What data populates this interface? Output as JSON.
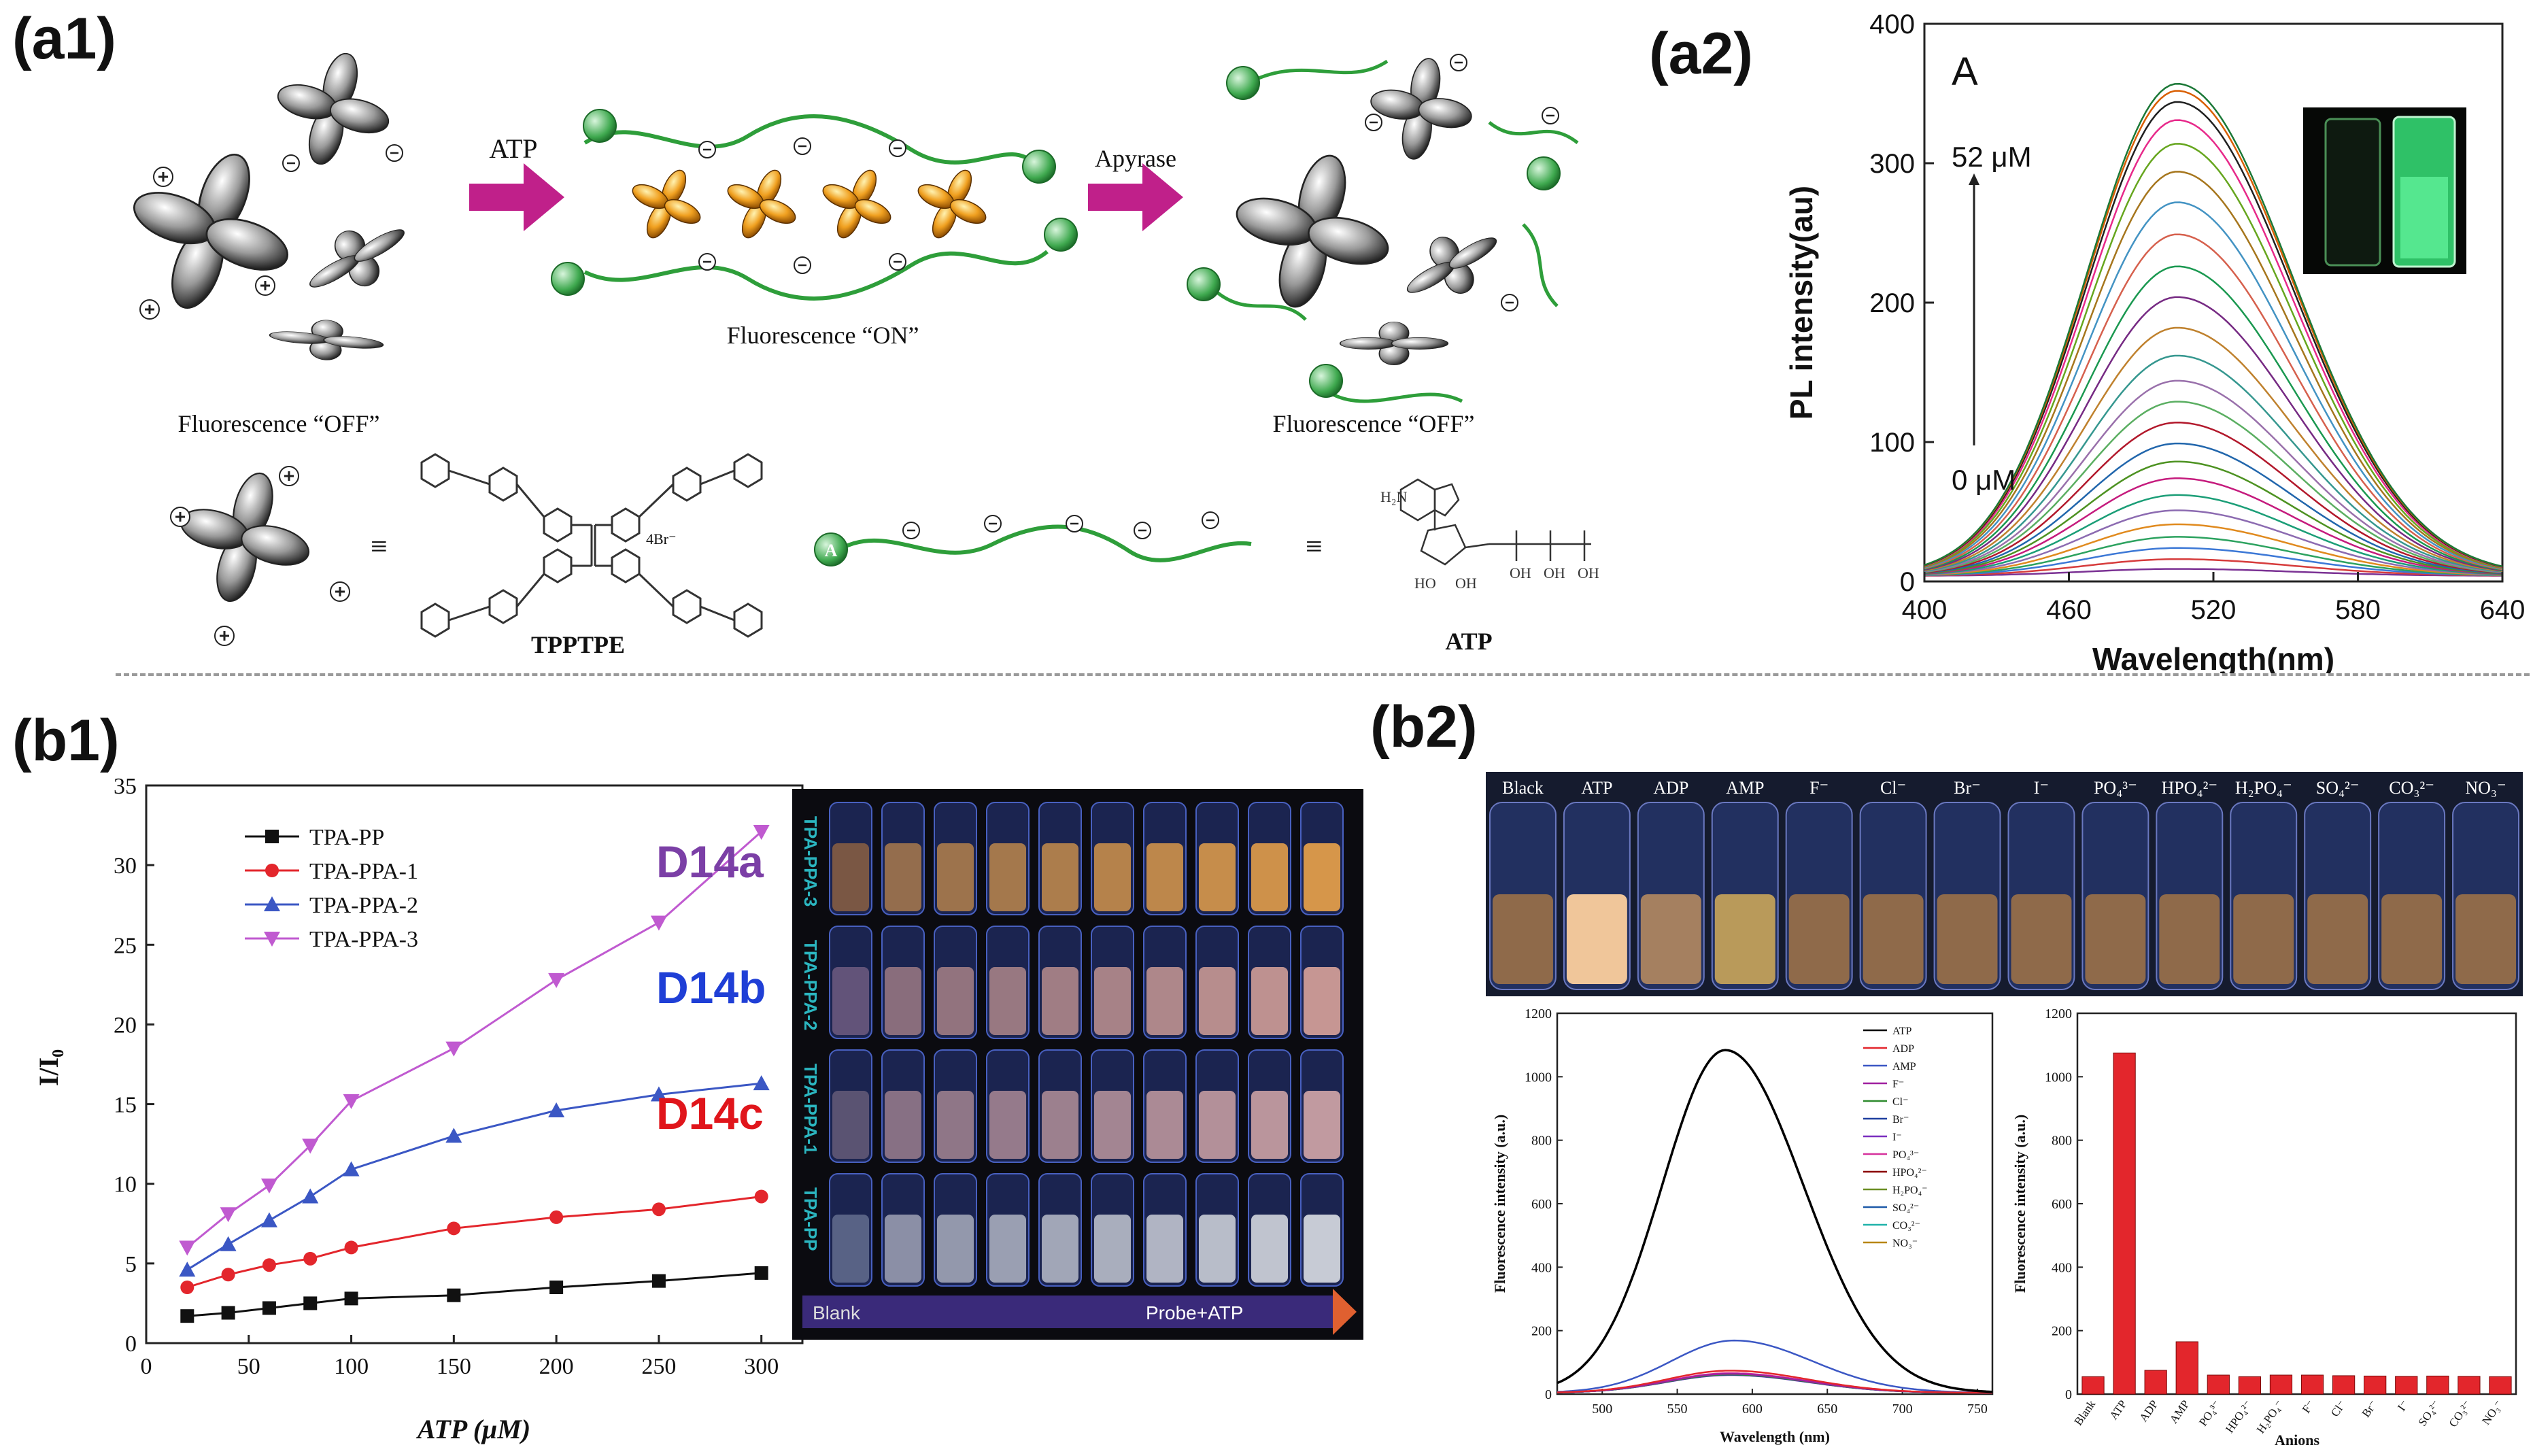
{
  "panels": {
    "a1": "(a1)",
    "a2": "(a2)",
    "b1": "(b1)",
    "b2": "(b2)"
  },
  "a1": {
    "arrow1": "ATP",
    "arrow2": "Apyrase",
    "state_off_left": "Fluorescence “OFF”",
    "state_on": "Fluorescence “ON”",
    "state_off_right": "Fluorescence “OFF”",
    "equiv": "≡",
    "probe_name": "TPPTPE",
    "counterion": "4Br⁻",
    "target_name": "ATP",
    "nh2": "H₂N",
    "ho": "HO",
    "oh": "OH",
    "adenine": "A"
  },
  "a2": {
    "panel_letter": "A",
    "conc_high": "52 μM",
    "conc_low": "0 μM",
    "xlabel": "Wavelength(nm)",
    "ylabel": "PL intensity(au)"
  },
  "b1": {
    "xlabel": "ATP (μM)",
    "ylabel": "I/I₀",
    "label_a": "D14a",
    "label_b": "D14b",
    "label_c": "D14c",
    "colors": {
      "label_a": "#7b3fa6",
      "label_b": "#1f3fd6",
      "label_c": "#e0151b"
    },
    "photo_rows": [
      "TPA-PPA-3",
      "TPA-PPA-2",
      "TPA-PPA-1",
      "TPA-PP"
    ],
    "blank": "Blank",
    "probe_atp": "Probe+ATP"
  },
  "b2": {
    "vials": [
      "Black",
      "ATP",
      "ADP",
      "AMP",
      "F⁻",
      "Cl⁻",
      "Br⁻",
      "I⁻",
      "PO₄³⁻",
      "HPO₄²⁻",
      "H₂PO₄⁻",
      "SO₄²⁻",
      "CO₃²⁻",
      "NO₃⁻"
    ],
    "spec_xlabel": "Wavelength (nm)",
    "spec_ylabel": "Fluorescence intensity (a.u.)",
    "bar_xlabel": "Anions",
    "bar_ylabel": "Fluorescence intensity (a.u.)"
  },
  "chart_data": [
    {
      "type": "line",
      "title": "",
      "xlabel": "Wavelength(nm)",
      "ylabel": "PL intensity(au)",
      "xlim": [
        400,
        640
      ],
      "ylim": [
        0,
        400
      ],
      "xticks": [
        400,
        460,
        520,
        580,
        640
      ],
      "yticks": [
        0,
        100,
        200,
        300,
        400
      ],
      "peak_wavelength": 505,
      "series_peaks": [
        5,
        12,
        20,
        28,
        37,
        47,
        58,
        70,
        82,
        95,
        110,
        125,
        140,
        158,
        178,
        200,
        222,
        245,
        268,
        290,
        310,
        327,
        340,
        348,
        353
      ],
      "series_colors": [
        "#7b3294",
        "#d63c3c",
        "#3c78d6",
        "#2ca25f",
        "#e08a1e",
        "#8c6bb1",
        "#1b9e77",
        "#c51b7d",
        "#4d9221",
        "#2166ac",
        "#b2182b",
        "#5aae61",
        "#9970ab",
        "#35978f",
        "#bf812d",
        "#762a83",
        "#1a9850",
        "#d6604d",
        "#4393c3",
        "#a6761d",
        "#66a61e",
        "#e7298a",
        "#202020",
        "#d95f02",
        "#1b7837"
      ],
      "legend": []
    },
    {
      "type": "line",
      "title": "",
      "xlabel": "ATP (μM)",
      "ylabel": "I/I₀",
      "xlim": [
        0,
        320
      ],
      "ylim": [
        0,
        35
      ],
      "xticks": [
        0,
        50,
        100,
        150,
        200,
        250,
        300
      ],
      "yticks": [
        0,
        5,
        10,
        15,
        20,
        25,
        30,
        35
      ],
      "x": [
        20,
        40,
        60,
        80,
        100,
        150,
        200,
        250,
        300
      ],
      "series": [
        {
          "name": "TPA-PP",
          "color": "#111111",
          "marker": "square",
          "values": [
            1.7,
            1.9,
            2.2,
            2.5,
            2.8,
            3.0,
            3.5,
            3.9,
            4.4
          ]
        },
        {
          "name": "TPA-PPA-1",
          "color": "#e3262c",
          "marker": "circle",
          "values": [
            3.5,
            4.3,
            4.9,
            5.3,
            6.0,
            7.2,
            7.9,
            8.4,
            9.2
          ]
        },
        {
          "name": "TPA-PPA-2",
          "color": "#3b57c4",
          "marker": "triangle-up",
          "values": [
            4.6,
            6.2,
            7.7,
            9.2,
            10.9,
            13.0,
            14.6,
            15.6,
            16.3
          ]
        },
        {
          "name": "TPA-PPA-3",
          "color": "#c05ad0",
          "marker": "triangle-down",
          "values": [
            6.0,
            8.1,
            9.9,
            12.4,
            15.2,
            18.5,
            22.8,
            26.4,
            32.1
          ]
        }
      ],
      "legend": "top-left"
    },
    {
      "type": "line",
      "title": "",
      "xlabel": "Wavelength (nm)",
      "ylabel": "Fluorescence intensity (a.u.)",
      "xlim": [
        470,
        760
      ],
      "ylim": [
        0,
        1200
      ],
      "xticks": [
        500,
        550,
        600,
        650,
        700,
        750
      ],
      "yticks": [
        0,
        200,
        400,
        600,
        800,
        1000,
        1200
      ],
      "series": [
        {
          "name": "ATP",
          "color": "#000000",
          "peak": 1080,
          "peak_x": 582
        },
        {
          "name": "ADP",
          "color": "#e3262c",
          "peak": 70,
          "peak_x": 585
        },
        {
          "name": "AMP",
          "color": "#3b57c4",
          "peak": 165,
          "peak_x": 588
        },
        {
          "name": "F⁻",
          "color": "#a020a0",
          "peak": 60,
          "peak_x": 585
        },
        {
          "name": "Cl⁻",
          "color": "#2e8b2e",
          "peak": 58,
          "peak_x": 585
        },
        {
          "name": "Br⁻",
          "color": "#1f3f9f",
          "peak": 57,
          "peak_x": 585
        },
        {
          "name": "I⁻",
          "color": "#7b2fbf",
          "peak": 56,
          "peak_x": 585
        },
        {
          "name": "PO₄³⁻",
          "color": "#d6329c",
          "peak": 62,
          "peak_x": 585
        },
        {
          "name": "HPO₄²⁻",
          "color": "#8b0000",
          "peak": 60,
          "peak_x": 585
        },
        {
          "name": "H₂PO₄⁻",
          "color": "#6b8e23",
          "peak": 60,
          "peak_x": 585
        },
        {
          "name": "SO₄²⁻",
          "color": "#1e5aa8",
          "peak": 58,
          "peak_x": 585
        },
        {
          "name": "CO₃²⁻",
          "color": "#20b2aa",
          "peak": 58,
          "peak_x": 585
        },
        {
          "name": "NO₃⁻",
          "color": "#b8860b",
          "peak": 57,
          "peak_x": 585
        }
      ],
      "legend": "top-right"
    },
    {
      "type": "bar",
      "title": "",
      "xlabel": "Anions",
      "ylabel": "Fluorescence intensity (a.u.)",
      "ylim": [
        0,
        1200
      ],
      "yticks": [
        0,
        200,
        400,
        600,
        800,
        1000,
        1200
      ],
      "categories": [
        "Blank",
        "ATP",
        "ADP",
        "AMP",
        "PO₄³⁻",
        "HPO₄²⁻",
        "H₂PO₄⁻",
        "F⁻",
        "Cl⁻",
        "Br⁻",
        "I⁻",
        "SO₄²⁻",
        "CO₃²⁻",
        "NO₃⁻"
      ],
      "values": [
        55,
        1075,
        75,
        165,
        60,
        55,
        60,
        60,
        58,
        57,
        56,
        57,
        56,
        55
      ],
      "color": "#e3262c"
    }
  ]
}
